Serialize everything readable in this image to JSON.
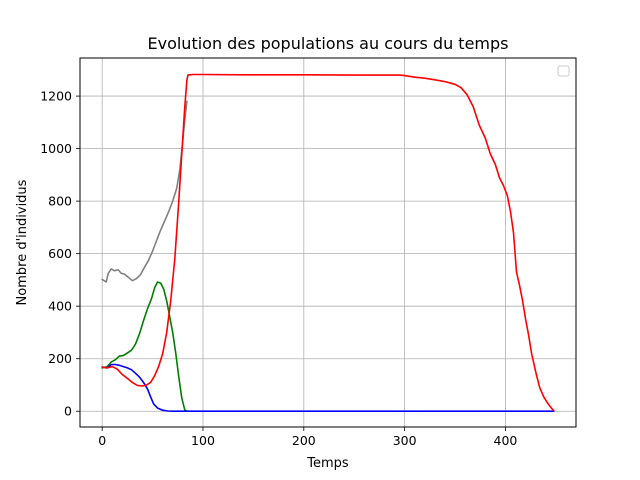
{
  "chart_data": {
    "type": "line",
    "title": "Evolution des populations au cours du temps",
    "xlabel": "Temps",
    "ylabel": "Nombre d'individus",
    "xlim": [
      -22,
      470
    ],
    "ylim": [
      -60,
      1345
    ],
    "x_ticks": [
      0,
      100,
      200,
      300,
      400
    ],
    "y_ticks": [
      0,
      200,
      400,
      600,
      800,
      1000,
      1200
    ],
    "grid": true,
    "legend": "top-right (empty)",
    "series": [
      {
        "color": "#808080",
        "points": [
          [
            0,
            502
          ],
          [
            4,
            492
          ],
          [
            6,
            525
          ],
          [
            9,
            542
          ],
          [
            12,
            535
          ],
          [
            16,
            538
          ],
          [
            19,
            525
          ],
          [
            22,
            522
          ],
          [
            26,
            510
          ],
          [
            30,
            497
          ],
          [
            34,
            505
          ],
          [
            38,
            520
          ],
          [
            42,
            548
          ],
          [
            46,
            575
          ],
          [
            50,
            610
          ],
          [
            54,
            650
          ],
          [
            58,
            690
          ],
          [
            62,
            725
          ],
          [
            66,
            760
          ],
          [
            70,
            800
          ],
          [
            74,
            850
          ],
          [
            77,
            920
          ],
          [
            80,
            1030
          ],
          [
            82,
            1110
          ],
          [
            84,
            1180
          ]
        ]
      },
      {
        "color": "#008000",
        "points": [
          [
            0,
            165
          ],
          [
            5,
            170
          ],
          [
            9,
            188
          ],
          [
            13,
            196
          ],
          [
            17,
            210
          ],
          [
            21,
            212
          ],
          [
            25,
            222
          ],
          [
            29,
            232
          ],
          [
            33,
            255
          ],
          [
            37,
            295
          ],
          [
            41,
            345
          ],
          [
            45,
            390
          ],
          [
            49,
            430
          ],
          [
            52,
            470
          ],
          [
            55,
            492
          ],
          [
            58,
            488
          ],
          [
            61,
            465
          ],
          [
            64,
            420
          ],
          [
            67,
            360
          ],
          [
            70,
            300
          ],
          [
            73,
            220
          ],
          [
            76,
            130
          ],
          [
            79,
            50
          ],
          [
            82,
            5
          ],
          [
            84,
            0
          ]
        ]
      },
      {
        "color": "#0000ff",
        "points": [
          [
            0,
            168
          ],
          [
            5,
            165
          ],
          [
            9,
            178
          ],
          [
            13,
            178
          ],
          [
            17,
            175
          ],
          [
            21,
            170
          ],
          [
            25,
            165
          ],
          [
            29,
            158
          ],
          [
            33,
            145
          ],
          [
            37,
            130
          ],
          [
            41,
            110
          ],
          [
            45,
            85
          ],
          [
            48,
            55
          ],
          [
            51,
            28
          ],
          [
            55,
            12
          ],
          [
            60,
            4
          ],
          [
            65,
            1
          ],
          [
            70,
            0
          ],
          [
            100,
            0
          ],
          [
            150,
            0
          ],
          [
            200,
            0
          ],
          [
            250,
            0
          ],
          [
            300,
            0
          ],
          [
            350,
            0
          ],
          [
            400,
            0
          ],
          [
            440,
            0
          ],
          [
            448,
            0
          ]
        ]
      },
      {
        "color": "#ff0000",
        "points": [
          [
            0,
            168
          ],
          [
            5,
            165
          ],
          [
            10,
            170
          ],
          [
            15,
            160
          ],
          [
            20,
            140
          ],
          [
            25,
            125
          ],
          [
            30,
            110
          ],
          [
            35,
            98
          ],
          [
            40,
            96
          ],
          [
            44,
            100
          ],
          [
            48,
            110
          ],
          [
            52,
            135
          ],
          [
            56,
            170
          ],
          [
            60,
            220
          ],
          [
            64,
            300
          ],
          [
            68,
            420
          ],
          [
            72,
            580
          ],
          [
            76,
            800
          ],
          [
            80,
            1040
          ],
          [
            82,
            1160
          ],
          [
            84,
            1260
          ],
          [
            85,
            1280
          ],
          [
            90,
            1282
          ],
          [
            100,
            1282
          ],
          [
            140,
            1281
          ],
          [
            200,
            1281
          ],
          [
            250,
            1280
          ],
          [
            295,
            1280
          ],
          [
            300,
            1278
          ],
          [
            310,
            1272
          ],
          [
            320,
            1268
          ],
          [
            330,
            1262
          ],
          [
            340,
            1255
          ],
          [
            350,
            1245
          ],
          [
            356,
            1232
          ],
          [
            362,
            1205
          ],
          [
            368,
            1160
          ],
          [
            374,
            1090
          ],
          [
            380,
            1040
          ],
          [
            385,
            980
          ],
          [
            390,
            940
          ],
          [
            394,
            890
          ],
          [
            398,
            860
          ],
          [
            402,
            820
          ],
          [
            405,
            760
          ],
          [
            408,
            680
          ],
          [
            411,
            530
          ],
          [
            414,
            480
          ],
          [
            417,
            420
          ],
          [
            420,
            350
          ],
          [
            423,
            290
          ],
          [
            426,
            220
          ],
          [
            430,
            150
          ],
          [
            434,
            90
          ],
          [
            438,
            55
          ],
          [
            442,
            30
          ],
          [
            446,
            10
          ],
          [
            448,
            2
          ]
        ]
      }
    ]
  }
}
